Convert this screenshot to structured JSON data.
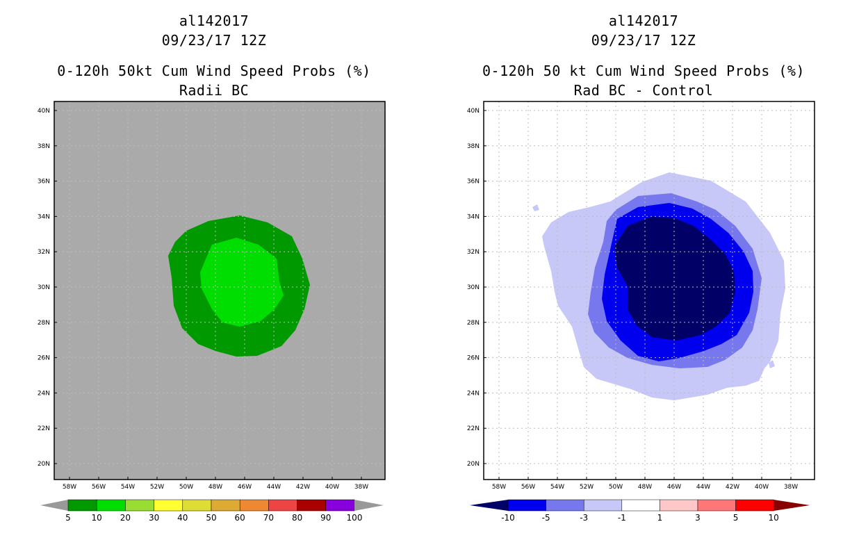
{
  "left_panel": {
    "storm_id": "al142017",
    "datetime": "09/23/17 12Z",
    "title": "0-120h 50kt Cum Wind Speed Probs (%)",
    "subtitle": "Radii BC",
    "lat_labels": [
      "40N",
      "38N",
      "36N",
      "34N",
      "32N",
      "30N",
      "28N",
      "26N",
      "24N",
      "22N",
      "20N"
    ],
    "lon_labels": [
      "58W",
      "56W",
      "54W",
      "52W",
      "50W",
      "48W",
      "46W",
      "44W",
      "42W",
      "40W",
      "38W"
    ],
    "colorbar": {
      "labels": [
        "5",
        "10",
        "20",
        "30",
        "40",
        "50",
        "60",
        "70",
        "80",
        "90",
        "100"
      ],
      "colors": [
        "#009900",
        "#00dd00",
        "#99dd33",
        "#ffff33",
        "#dddd33",
        "#ddaa33",
        "#ee8833",
        "#ee4444",
        "#aa0000",
        "#8800dd"
      ]
    }
  },
  "right_panel": {
    "storm_id": "al142017",
    "datetime": "09/23/17 12Z",
    "title": "0-120h 50 kt Cum Wind Speed Probs (%)",
    "subtitle": "Rad BC - Control",
    "lat_labels": [
      "40N",
      "38N",
      "36N",
      "34N",
      "32N",
      "30N",
      "28N",
      "26N",
      "24N",
      "22N",
      "20N"
    ],
    "lon_labels": [
      "58W",
      "56W",
      "54W",
      "52W",
      "50W",
      "48W",
      "46W",
      "44W",
      "42W",
      "40W",
      "38W"
    ],
    "colorbar": {
      "labels": [
        "-10",
        "-5",
        "-3",
        "-1",
        "1",
        "3",
        "5",
        "10"
      ],
      "colors": [
        "#000066",
        "#0000ee",
        "#7777ee",
        "#c8c8f8",
        "#ffffff",
        "#ffc8c8",
        "#ff7777",
        "#ff0000",
        "#880000"
      ]
    }
  },
  "colors": {
    "land_gray": "#aaaaaa",
    "prob_10": "#009900",
    "prob_20": "#00dd00",
    "diff_navy": "#000066",
    "diff_blue": "#0000ee",
    "diff_mid": "#7777ee",
    "diff_light": "#c8c8f8"
  }
}
